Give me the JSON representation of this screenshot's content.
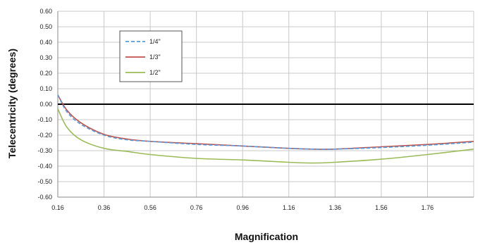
{
  "chart_data": {
    "type": "line",
    "title": "",
    "xlabel": "Magnification",
    "ylabel": "Telecentricity (degrees)",
    "xlim": [
      0.16,
      1.96
    ],
    "ylim": [
      -0.6,
      0.6
    ],
    "x_ticks": [
      "0.16",
      "0.36",
      "0.56",
      "0.76",
      "0.96",
      "1.16",
      "1.36",
      "1.56",
      "1.76"
    ],
    "y_ticks": [
      "0.60",
      "0.50",
      "0.40",
      "0.30",
      "0.20",
      "0.10",
      "0.00",
      "-0.10",
      "-0.20",
      "-0.30",
      "-0.40",
      "-0.50",
      "-0.60"
    ],
    "grid": true,
    "legend_position": "top-left",
    "zero_line": true,
    "series": [
      {
        "name": "1/4\"",
        "color": "#5b9bd5",
        "dash": "dashed",
        "x": [
          0.16,
          0.2,
          0.26,
          0.36,
          0.46,
          0.56,
          0.76,
          0.96,
          1.16,
          1.26,
          1.36,
          1.56,
          1.76,
          1.96
        ],
        "y": [
          0.06,
          -0.05,
          -0.13,
          -0.2,
          -0.23,
          -0.24,
          -0.26,
          -0.27,
          -0.285,
          -0.29,
          -0.29,
          -0.28,
          -0.265,
          -0.245
        ]
      },
      {
        "name": "1/3\"",
        "color": "#c0504d",
        "dash": "solid",
        "x": [
          0.16,
          0.2,
          0.26,
          0.36,
          0.46,
          0.56,
          0.76,
          0.96,
          1.16,
          1.26,
          1.36,
          1.56,
          1.76,
          1.96
        ],
        "y": [
          0.06,
          -0.04,
          -0.12,
          -0.195,
          -0.225,
          -0.24,
          -0.255,
          -0.27,
          -0.285,
          -0.29,
          -0.29,
          -0.275,
          -0.26,
          -0.24
        ]
      },
      {
        "name": "1/2\"",
        "color": "#9bbb59",
        "dash": "solid",
        "x": [
          0.16,
          0.2,
          0.26,
          0.36,
          0.46,
          0.56,
          0.76,
          0.96,
          1.16,
          1.26,
          1.36,
          1.56,
          1.76,
          1.96
        ],
        "y": [
          -0.03,
          -0.15,
          -0.23,
          -0.285,
          -0.305,
          -0.325,
          -0.35,
          -0.36,
          -0.375,
          -0.38,
          -0.375,
          -0.355,
          -0.325,
          -0.29
        ]
      }
    ]
  }
}
